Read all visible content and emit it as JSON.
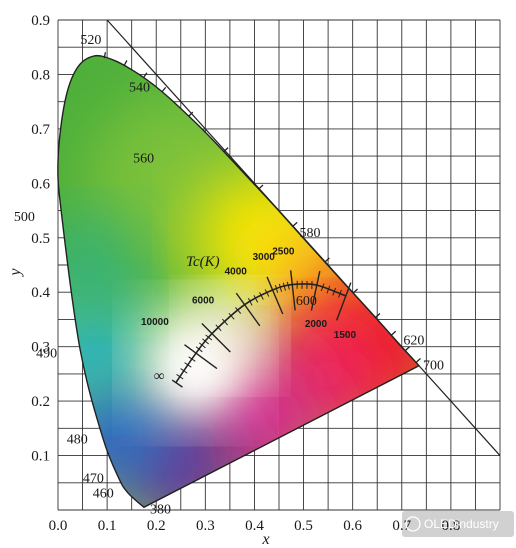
{
  "chart_data": {
    "type": "scatter",
    "title": "",
    "xlabel": "x",
    "ylabel": "y",
    "xlim": [
      0.0,
      0.9
    ],
    "ylim": [
      0.0,
      0.9
    ],
    "grid": true,
    "x_ticks": [
      "0.0",
      "0.1",
      "0.2",
      "0.3",
      "0.4",
      "0.5",
      "0.6",
      "0.7",
      "0.8"
    ],
    "y_ticks": [
      "0.1",
      "0.2",
      "0.3",
      "0.4",
      "0.5",
      "0.6",
      "0.7",
      "0.8",
      "0.9"
    ],
    "spectral_locus": [
      {
        "x": 0.175,
        "y": 0.005,
        "label": "380"
      },
      {
        "x": 0.144,
        "y": 0.03,
        "label": "460"
      },
      {
        "x": 0.124,
        "y": 0.058,
        "label": "470"
      },
      {
        "x": 0.091,
        "y": 0.133,
        "label": "480"
      },
      {
        "x": 0.045,
        "y": 0.295,
        "label": "490"
      },
      {
        "x": 0.008,
        "y": 0.538,
        "label": "500"
      },
      {
        "x": 0.0,
        "y": 0.64
      },
      {
        "x": 0.014,
        "y": 0.75
      },
      {
        "x": 0.039,
        "y": 0.812
      },
      {
        "x": 0.074,
        "y": 0.834,
        "label": "520"
      },
      {
        "x": 0.114,
        "y": 0.826
      },
      {
        "x": 0.155,
        "y": 0.806
      },
      {
        "x": 0.193,
        "y": 0.782
      },
      {
        "x": 0.23,
        "y": 0.754,
        "label": "540"
      },
      {
        "x": 0.302,
        "y": 0.692
      },
      {
        "x": 0.373,
        "y": 0.624,
        "label": "560"
      },
      {
        "x": 0.444,
        "y": 0.555
      },
      {
        "x": 0.512,
        "y": 0.487,
        "label": "580"
      },
      {
        "x": 0.575,
        "y": 0.424
      },
      {
        "x": 0.627,
        "y": 0.373,
        "label": "600"
      },
      {
        "x": 0.666,
        "y": 0.334
      },
      {
        "x": 0.691,
        "y": 0.308,
        "label": "620"
      },
      {
        "x": 0.723,
        "y": 0.277
      },
      {
        "x": 0.735,
        "y": 0.265,
        "label": "700"
      }
    ],
    "planckian_locus": {
      "label": "Tc(K)",
      "points": [
        {
          "x": 0.24,
          "y": 0.234,
          "label": "∞"
        },
        {
          "x": 0.281,
          "y": 0.288,
          "label": "10000"
        },
        {
          "x": 0.3135,
          "y": 0.324,
          "label": "6000"
        },
        {
          "x": 0.38,
          "y": 0.377,
          "label": "4000"
        },
        {
          "x": 0.437,
          "y": 0.404,
          "label": "3000"
        },
        {
          "x": 0.477,
          "y": 0.414,
          "label": "2500"
        },
        {
          "x": 0.527,
          "y": 0.413,
          "label": "2000"
        },
        {
          "x": 0.586,
          "y": 0.393,
          "label": "1500"
        }
      ]
    },
    "colors": {
      "green": "#4caf3a",
      "yellow": "#f7e600",
      "red": "#ec1c24",
      "blue": "#2a63c8",
      "violet": "#6a2e96",
      "cyan": "#22b3c6"
    }
  },
  "watermark": "OLEDindustry"
}
